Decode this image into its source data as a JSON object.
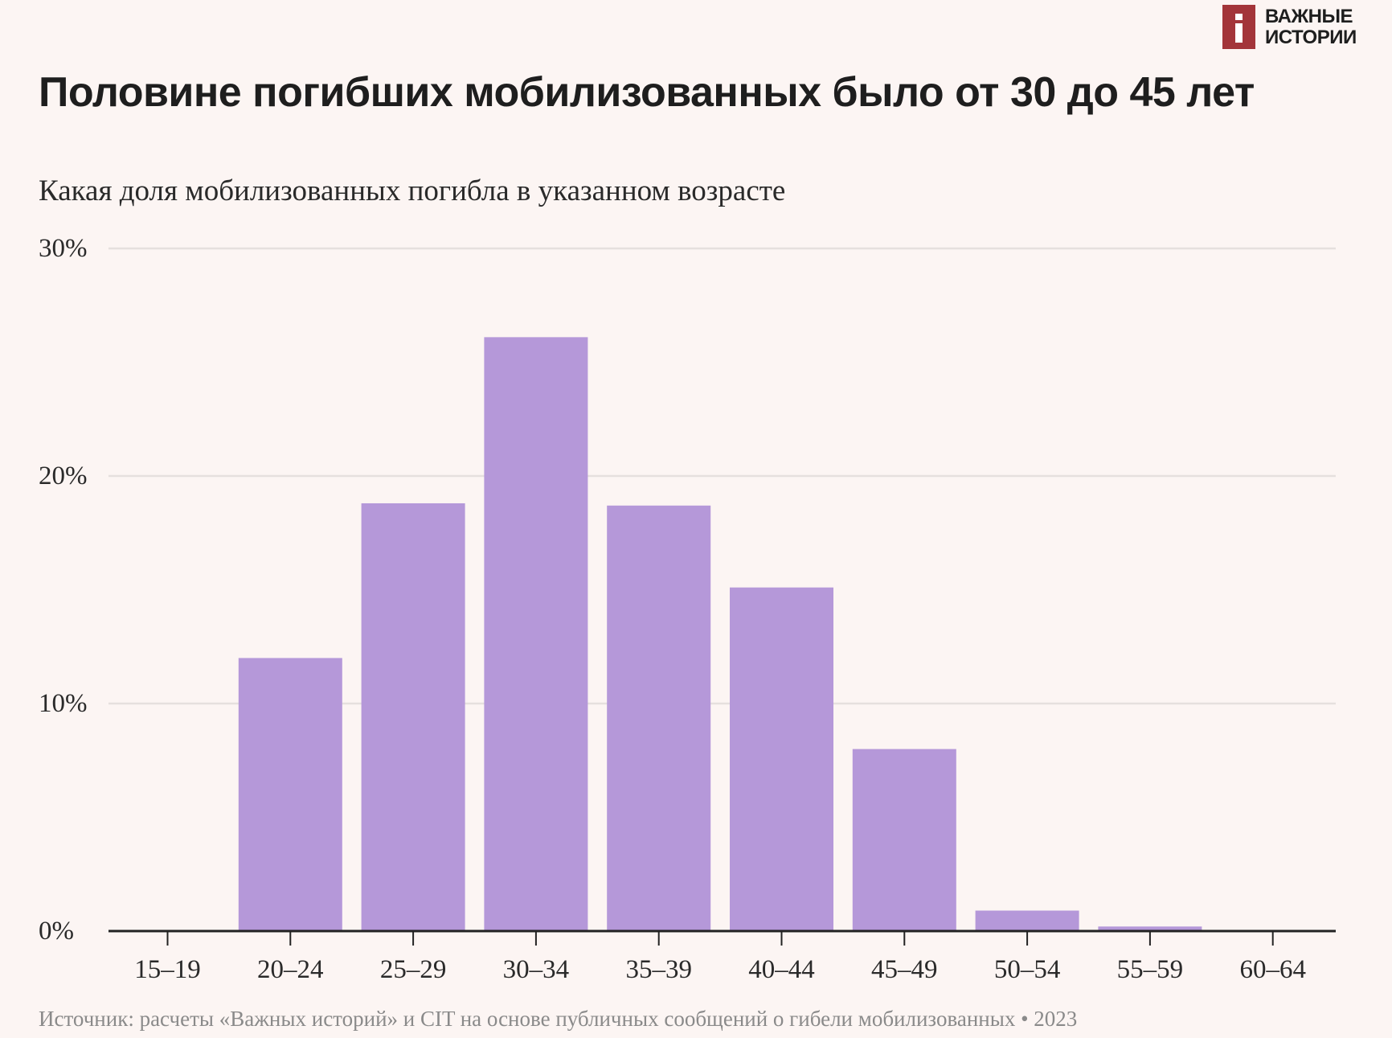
{
  "logo": {
    "line1": "ВАЖНЫЕ",
    "line2": "ИСТОРИИ",
    "color": "#a3353a"
  },
  "chart_data": {
    "type": "bar",
    "title": "Половине погибших мобилизованных было от 30 до 45 лет",
    "subtitle": "Какая доля мобилизованных погибла в указанном возрасте",
    "categories": [
      "15–19",
      "20–24",
      "25–29",
      "30–34",
      "35–39",
      "40–44",
      "45–49",
      "50–54",
      "55–59",
      "60–64"
    ],
    "values": [
      0.05,
      12.0,
      18.8,
      26.1,
      18.7,
      15.1,
      8.0,
      0.9,
      0.2,
      0.05
    ],
    "unit": "%",
    "ylim": [
      0,
      30
    ],
    "yticks": [
      0,
      10,
      20,
      30
    ],
    "ytick_labels": [
      "0%",
      "10%",
      "20%",
      "30%"
    ],
    "grid": true,
    "bar_color": "#b598d9",
    "source": "Источник: расчеты «Важных историй» и CIT на основе публичных сообщений о гибели мобилизованных • 2023"
  }
}
